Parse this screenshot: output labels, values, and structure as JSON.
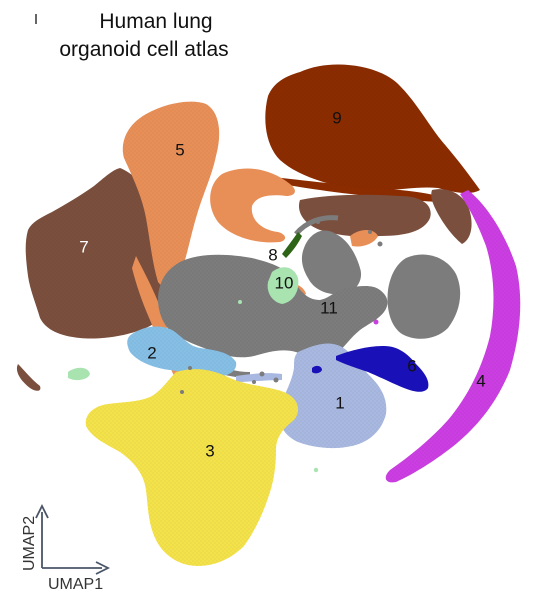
{
  "title": {
    "line1": "Human lung",
    "line2": "organoid cell atlas"
  },
  "chart_data": {
    "type": "scatter",
    "title": "Human lung organoid cell atlas",
    "xlabel": "UMAP1",
    "ylabel": "UMAP2",
    "legend": "none",
    "clusters": [
      {
        "label": "1",
        "color": "#a8b8e0"
      },
      {
        "label": "2",
        "color": "#86bfe6"
      },
      {
        "label": "3",
        "color": "#f4e24b"
      },
      {
        "label": "4",
        "color": "#cb3ee2"
      },
      {
        "label": "5",
        "color": "#e88f58"
      },
      {
        "label": "6",
        "color": "#1a10b8"
      },
      {
        "label": "7",
        "color": "#7b4f3e"
      },
      {
        "label": "8",
        "color": "#2e6418"
      },
      {
        "label": "9",
        "color": "#8b2c00"
      },
      {
        "label": "10",
        "color": "#a8e3b0"
      },
      {
        "label": "11",
        "color": "#7c7c7c"
      }
    ]
  }
}
